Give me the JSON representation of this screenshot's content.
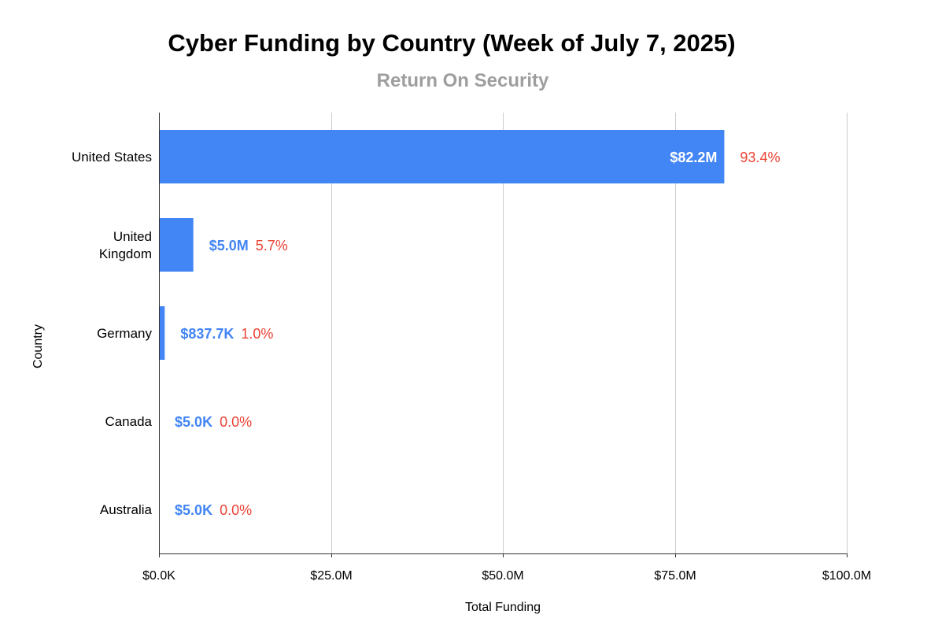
{
  "chart_data": {
    "type": "bar",
    "orientation": "horizontal",
    "title": "Cyber Funding by Country (Week of July 7, 2025)",
    "subtitle": "Return On Security",
    "xlabel": "Total Funding",
    "ylabel": "Country",
    "xlim": [
      0,
      100000000
    ],
    "xticks": [
      0,
      25000000,
      50000000,
      75000000,
      100000000
    ],
    "xtick_labels": [
      "$0.0K",
      "$25.0M",
      "$50.0M",
      "$75.0M",
      "$100.0M"
    ],
    "grid": true,
    "categories": [
      {
        "label": "United States",
        "label_lines": [
          "United States"
        ]
      },
      {
        "label": "United Kingdom",
        "label_lines": [
          "United",
          "Kingdom"
        ]
      },
      {
        "label": "Germany",
        "label_lines": [
          "Germany"
        ]
      },
      {
        "label": "Canada",
        "label_lines": [
          "Canada"
        ]
      },
      {
        "label": "Australia",
        "label_lines": [
          "Australia"
        ]
      }
    ],
    "values": [
      82200000,
      5000000,
      837700,
      5000,
      5000
    ],
    "value_labels": [
      "$82.2M",
      "$5.0M",
      "$837.7K",
      "$5.0K",
      "$5.0K"
    ],
    "percent_labels": [
      "93.4%",
      "5.7%",
      "1.0%",
      "0.0%",
      "0.0%"
    ],
    "colors": {
      "bar": "#4285f4",
      "value_label_outside": "#4285f4",
      "value_label_inside": "#ffffff",
      "percent_label": "#ea4335",
      "grid": "#cccccc",
      "axis": "#333333",
      "subtitle": "#9e9e9e"
    }
  }
}
